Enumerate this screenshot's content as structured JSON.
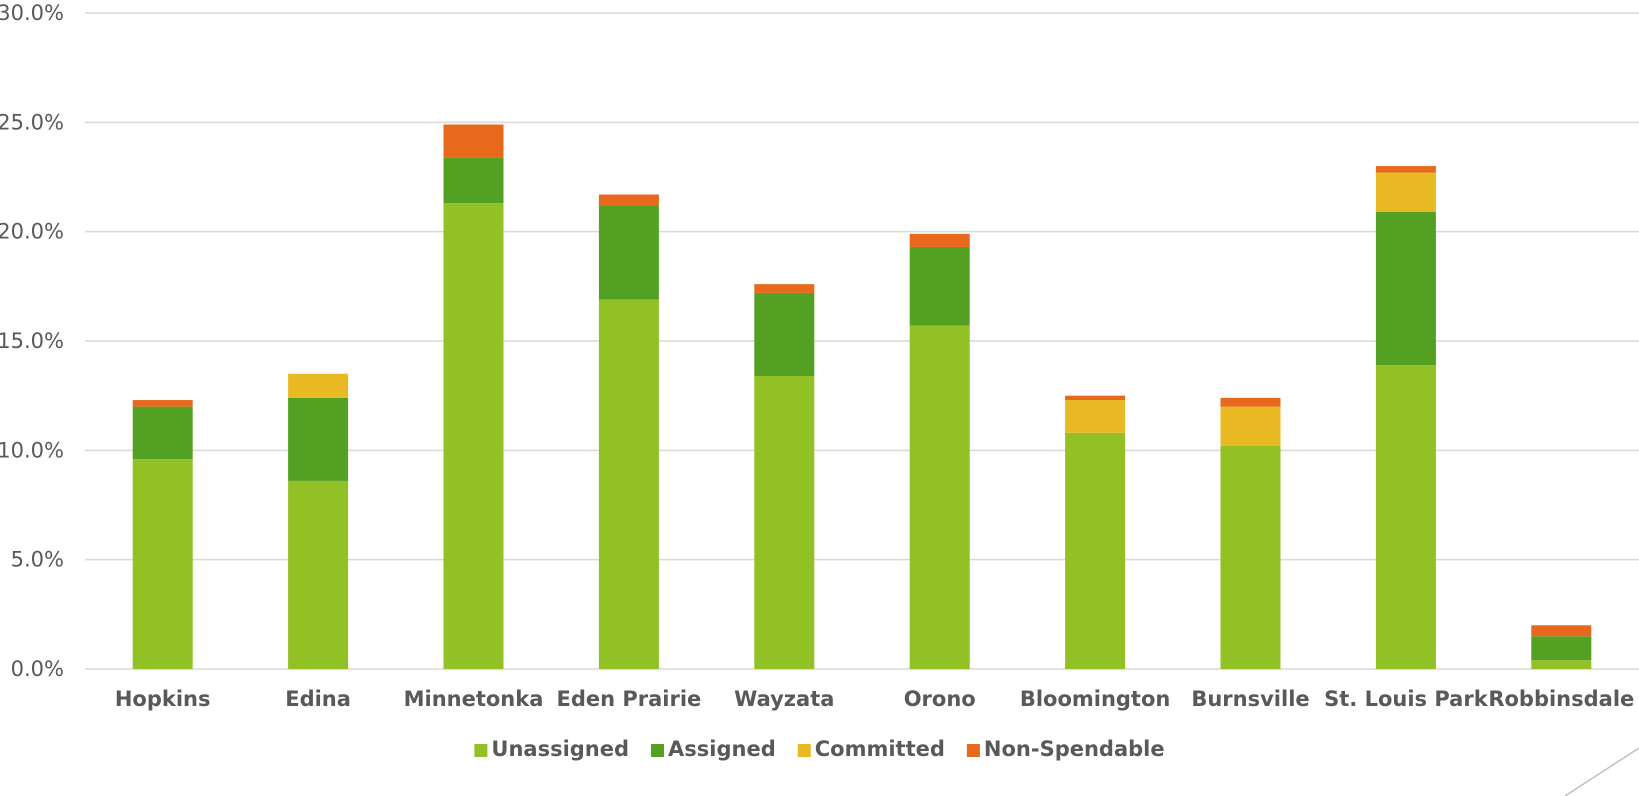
{
  "chart_data": {
    "type": "bar",
    "stacked": true,
    "categories": [
      "Hopkins",
      "Edina",
      "Minnetonka",
      "Eden Prairie",
      "Wayzata",
      "Orono",
      "Bloomington",
      "Burnsville",
      "St. Louis Park",
      "Robbinsdale"
    ],
    "series": [
      {
        "name": "Unassigned",
        "color": "#92c125",
        "values": [
          9.6,
          8.6,
          21.3,
          16.9,
          13.4,
          15.7,
          10.8,
          10.2,
          13.9,
          0.4
        ]
      },
      {
        "name": "Assigned",
        "color": "#54a022",
        "values": [
          2.4,
          3.8,
          2.1,
          4.3,
          3.8,
          3.6,
          0.0,
          0.0,
          7.0,
          1.1
        ]
      },
      {
        "name": "Committed",
        "color": "#e8b923",
        "values": [
          0.0,
          1.1,
          0.0,
          0.0,
          0.0,
          0.0,
          1.5,
          1.8,
          1.8,
          0.0
        ]
      },
      {
        "name": "Non-Spendable",
        "color": "#e8681c",
        "values": [
          0.3,
          0.0,
          1.5,
          0.5,
          0.4,
          0.6,
          0.2,
          0.4,
          0.3,
          0.5
        ]
      }
    ],
    "ylim": [
      0,
      30
    ],
    "y_ticks": [
      "0.0%",
      "5.0%",
      "10.0%",
      "15.0%",
      "20.0%",
      "25.0%",
      "30.0%"
    ],
    "title": "",
    "xlabel": "",
    "ylabel": "",
    "grid": true,
    "legend_position": "bottom",
    "gridline_color": "#d9d9d9"
  }
}
